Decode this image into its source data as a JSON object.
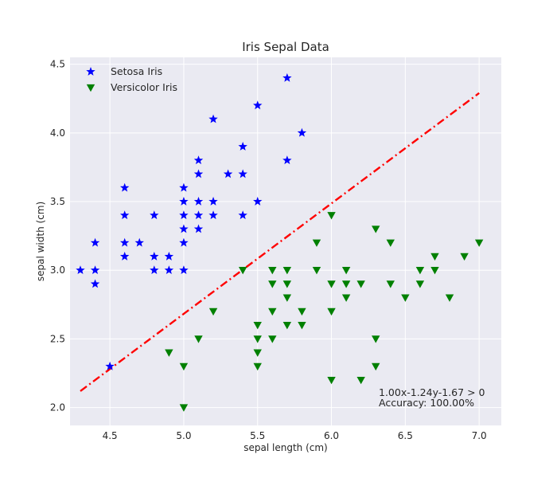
{
  "chart_data": {
    "type": "scatter",
    "title": "Iris Sepal Data",
    "xlabel": "sepal length (cm)",
    "ylabel": "sepal width (cm)",
    "xlim": [
      4.23,
      7.15
    ],
    "ylim": [
      1.87,
      4.55
    ],
    "xticks": [
      4.5,
      5.0,
      5.5,
      6.0,
      6.5,
      7.0
    ],
    "xtick_labels": [
      "4.5",
      "5.0",
      "5.5",
      "6.0",
      "6.5",
      "7.0"
    ],
    "yticks": [
      2.0,
      2.5,
      3.0,
      3.5,
      4.0,
      4.5
    ],
    "ytick_labels": [
      "2.0",
      "2.5",
      "3.0",
      "3.5",
      "4.0",
      "4.5"
    ],
    "grid": true,
    "legend_position": "top-left",
    "background": "#eaeaf2",
    "series": [
      {
        "name": "Setosa Iris",
        "marker": "star",
        "color": "#0000ff",
        "points": [
          [
            4.3,
            3.0
          ],
          [
            4.4,
            3.2
          ],
          [
            4.4,
            3.0
          ],
          [
            4.4,
            2.9
          ],
          [
            4.5,
            2.3
          ],
          [
            4.6,
            3.6
          ],
          [
            4.6,
            3.4
          ],
          [
            4.6,
            3.2
          ],
          [
            4.6,
            3.1
          ],
          [
            4.7,
            3.2
          ],
          [
            4.8,
            3.4
          ],
          [
            4.8,
            3.1
          ],
          [
            4.8,
            3.0
          ],
          [
            4.9,
            3.1
          ],
          [
            4.9,
            3.0
          ],
          [
            5.0,
            3.6
          ],
          [
            5.0,
            3.5
          ],
          [
            5.0,
            3.4
          ],
          [
            5.0,
            3.3
          ],
          [
            5.0,
            3.2
          ],
          [
            5.0,
            3.0
          ],
          [
            5.1,
            3.8
          ],
          [
            5.1,
            3.7
          ],
          [
            5.1,
            3.5
          ],
          [
            5.1,
            3.4
          ],
          [
            5.1,
            3.3
          ],
          [
            5.2,
            4.1
          ],
          [
            5.2,
            3.5
          ],
          [
            5.2,
            3.4
          ],
          [
            5.3,
            3.7
          ],
          [
            5.4,
            3.9
          ],
          [
            5.4,
            3.7
          ],
          [
            5.4,
            3.4
          ],
          [
            5.5,
            4.2
          ],
          [
            5.5,
            3.5
          ],
          [
            5.7,
            4.4
          ],
          [
            5.7,
            3.8
          ],
          [
            5.8,
            4.0
          ]
        ]
      },
      {
        "name": "Versicolor Iris",
        "marker": "triangle-down",
        "color": "#008000",
        "points": [
          [
            4.9,
            2.4
          ],
          [
            5.0,
            2.3
          ],
          [
            5.0,
            2.0
          ],
          [
            5.1,
            2.5
          ],
          [
            5.2,
            2.7
          ],
          [
            5.4,
            3.0
          ],
          [
            5.5,
            2.6
          ],
          [
            5.5,
            2.5
          ],
          [
            5.5,
            2.4
          ],
          [
            5.5,
            2.3
          ],
          [
            5.6,
            3.0
          ],
          [
            5.6,
            2.9
          ],
          [
            5.6,
            2.7
          ],
          [
            5.6,
            2.5
          ],
          [
            5.7,
            3.0
          ],
          [
            5.7,
            2.9
          ],
          [
            5.7,
            2.8
          ],
          [
            5.7,
            2.6
          ],
          [
            5.8,
            2.7
          ],
          [
            5.8,
            2.6
          ],
          [
            5.9,
            3.2
          ],
          [
            5.9,
            3.0
          ],
          [
            6.0,
            3.4
          ],
          [
            6.0,
            2.9
          ],
          [
            6.0,
            2.7
          ],
          [
            6.0,
            2.2
          ],
          [
            6.1,
            3.0
          ],
          [
            6.1,
            2.9
          ],
          [
            6.1,
            2.8
          ],
          [
            6.2,
            2.9
          ],
          [
            6.2,
            2.2
          ],
          [
            6.3,
            3.3
          ],
          [
            6.3,
            2.5
          ],
          [
            6.3,
            2.3
          ],
          [
            6.4,
            3.2
          ],
          [
            6.4,
            2.9
          ],
          [
            6.5,
            2.8
          ],
          [
            6.6,
            3.0
          ],
          [
            6.6,
            2.9
          ],
          [
            6.7,
            3.1
          ],
          [
            6.7,
            3.0
          ],
          [
            6.8,
            2.8
          ],
          [
            6.9,
            3.1
          ],
          [
            7.0,
            3.2
          ]
        ]
      }
    ],
    "decision_line": {
      "style": "dash-dot",
      "color": "#ff0000",
      "points": [
        [
          4.3,
          2.12
        ],
        [
          7.0,
          4.29
        ]
      ]
    },
    "annotations": [
      "1.00x-1.24y-1.67 > 0",
      "Accuracy: 100.00%"
    ]
  }
}
